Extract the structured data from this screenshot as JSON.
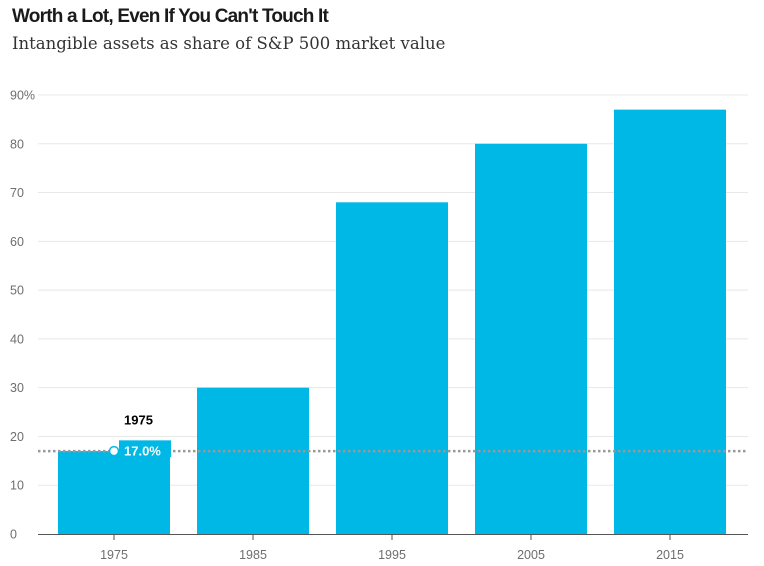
{
  "title": "Worth a Lot, Even If You Can't Touch It",
  "subtitle": "Intangible assets as share of S&P 500 market value",
  "chart_data": {
    "type": "bar",
    "categories": [
      "1975",
      "1985",
      "1995",
      "2005",
      "2015"
    ],
    "values": [
      17,
      30,
      68,
      80,
      87
    ],
    "ylim": [
      0,
      90
    ],
    "yticks": [
      0,
      10,
      20,
      30,
      40,
      50,
      60,
      70,
      80,
      90
    ],
    "ytick_labels": [
      "0",
      "10",
      "20",
      "30",
      "40",
      "50",
      "60",
      "70",
      "80",
      "90%"
    ],
    "grid": true,
    "bar_color": "#00b8e6",
    "reference_line": {
      "value": 17.0,
      "style": "dotted",
      "color": "#999999"
    },
    "annotation": {
      "category": "1975",
      "year_label": "1975",
      "value_label": "17.0%"
    }
  }
}
